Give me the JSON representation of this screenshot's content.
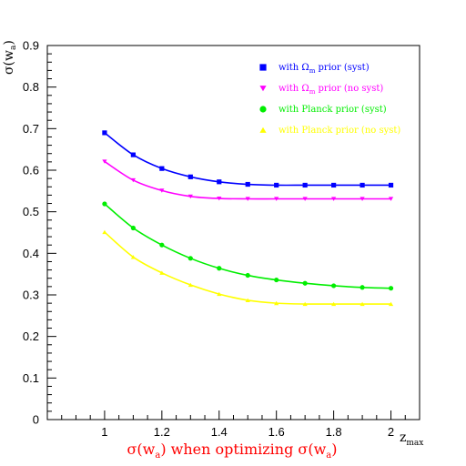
{
  "chart_data": {
    "type": "line",
    "title": "",
    "xlabel_parts": [
      "σ(w",
      "a",
      ") when optimizing σ(w",
      "a",
      ")"
    ],
    "xlabel_color": "#ff0000",
    "x_axis_corner_label": {
      "main": "z",
      "sub": "max"
    },
    "ylabel": {
      "main": "σ(w",
      "sub": "a",
      "end": ")"
    },
    "xlim": [
      0.8,
      2.1
    ],
    "ylim": [
      0,
      0.9
    ],
    "x_ticks": [
      1,
      1.2,
      1.4,
      1.6,
      1.8,
      2
    ],
    "x_tick_labels": [
      "1",
      "1.2",
      "1.4",
      "1.6",
      "1.8",
      "2"
    ],
    "y_ticks": [
      0,
      0.1,
      0.2,
      0.3,
      0.4,
      0.5,
      0.6,
      0.7,
      0.8,
      0.9
    ],
    "y_tick_labels": [
      "0",
      "0.1",
      "0.2",
      "0.3",
      "0.4",
      "0.5",
      "0.6",
      "0.7",
      "0.8",
      "0.9"
    ],
    "grid": false,
    "legend_position": "top-right",
    "x": [
      1.0,
      1.1,
      1.2,
      1.3,
      1.4,
      1.5,
      1.6,
      1.7,
      1.8,
      1.9,
      2.0
    ],
    "series": [
      {
        "name": "with Ωm prior (syst)",
        "legend_parts": [
          "with Ω",
          "m",
          " prior (syst)"
        ],
        "color": "#0000ff",
        "marker": "square",
        "values": [
          0.69,
          0.637,
          0.604,
          0.584,
          0.572,
          0.566,
          0.564,
          0.564,
          0.564,
          0.564,
          0.564
        ]
      },
      {
        "name": "with Ωm prior (no syst)",
        "legend_parts": [
          "with Ω",
          "m",
          " prior (no syst)"
        ],
        "color": "#ff00ff",
        "marker": "triangle-down",
        "values": [
          0.621,
          0.576,
          0.551,
          0.537,
          0.532,
          0.531,
          0.531,
          0.531,
          0.531,
          0.531,
          0.531
        ]
      },
      {
        "name": "with Planck prior (syst)",
        "legend_parts": [
          "with Planck prior (syst)",
          "",
          ""
        ],
        "color": "#00ee00",
        "marker": "circle",
        "values": [
          0.519,
          0.461,
          0.42,
          0.388,
          0.364,
          0.347,
          0.336,
          0.328,
          0.322,
          0.318,
          0.316
        ]
      },
      {
        "name": "with Planck prior (no syst)",
        "legend_parts": [
          "with Planck prior (no syst)",
          "",
          ""
        ],
        "color": "#ffff00",
        "marker": "triangle-up",
        "values": [
          0.451,
          0.391,
          0.353,
          0.324,
          0.302,
          0.287,
          0.28,
          0.278,
          0.278,
          0.278,
          0.278
        ]
      }
    ]
  }
}
